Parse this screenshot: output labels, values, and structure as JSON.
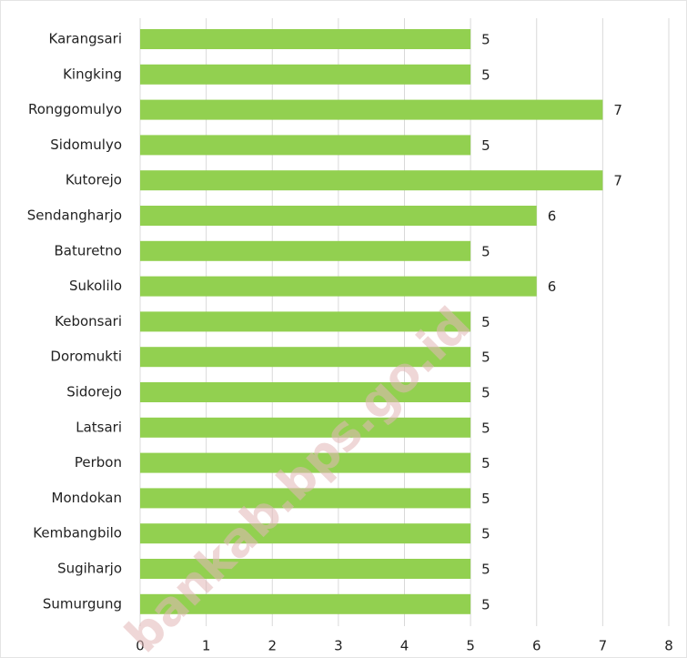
{
  "chart_data": {
    "type": "bar",
    "orientation": "horizontal",
    "categories": [
      "Karangsari",
      "Kingking",
      "Ronggomulyo",
      "Sidomulyo",
      "Kutorejo",
      "Sendangharjo",
      "Baturetno",
      "Sukolilo",
      "Kebonsari",
      "Doromukti",
      "Sidorejo",
      "Latsari",
      "Perbon",
      "Mondokan",
      "Kembangbilo",
      "Sugiharjo",
      "Sumurgung"
    ],
    "values": [
      5,
      5,
      7,
      5,
      7,
      6,
      5,
      6,
      5,
      5,
      5,
      5,
      5,
      5,
      5,
      5,
      5
    ],
    "color": "#92d050",
    "xlim": [
      0,
      8
    ],
    "xticks": [
      0,
      1,
      2,
      3,
      4,
      5,
      6,
      7,
      8
    ],
    "grid": true,
    "watermark": "bankab.bps.go.id"
  }
}
